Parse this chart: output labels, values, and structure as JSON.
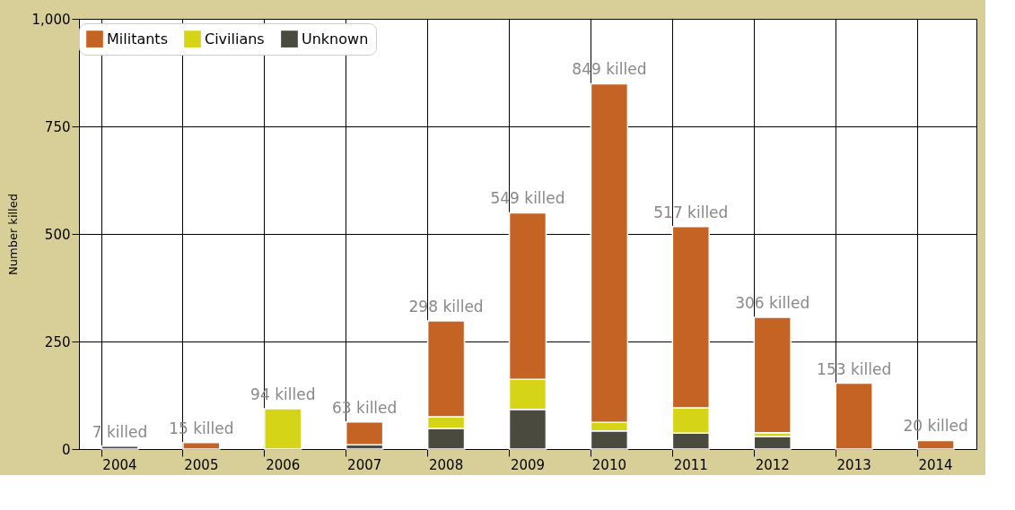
{
  "chart_data": {
    "type": "bar",
    "stacked": true,
    "ylabel": "Number killed",
    "categories": [
      "2004",
      "2005",
      "2006",
      "2007",
      "2008",
      "2009",
      "2010",
      "2011",
      "2012",
      "2013",
      "2014"
    ],
    "series": [
      {
        "name": "Unknown",
        "color": "#4b4a3e",
        "values": [
          7,
          null,
          null,
          10,
          48,
          92,
          42,
          37,
          29,
          null,
          null
        ]
      },
      {
        "name": "Civilians",
        "color": "#d6d416",
        "values": [
          null,
          null,
          94,
          null,
          27,
          70,
          20,
          59,
          9,
          null,
          null
        ]
      },
      {
        "name": "Militants",
        "color": "#c56325",
        "values": [
          null,
          15,
          null,
          53,
          223,
          387,
          787,
          421,
          268,
          153,
          20
        ]
      }
    ],
    "totals": [
      "7 killed",
      "15 killed",
      "94 killed",
      "63 killed",
      "298 killed",
      "549 killed",
      "849 killed",
      "517 killed",
      "306 killed",
      "153 killed",
      "20 killed"
    ],
    "ylim": [
      0,
      1000
    ],
    "yticks": [
      0,
      250,
      500,
      750,
      {
        "value": 1000,
        "label": "1,000"
      }
    ],
    "grid": true,
    "legend": "top"
  }
}
